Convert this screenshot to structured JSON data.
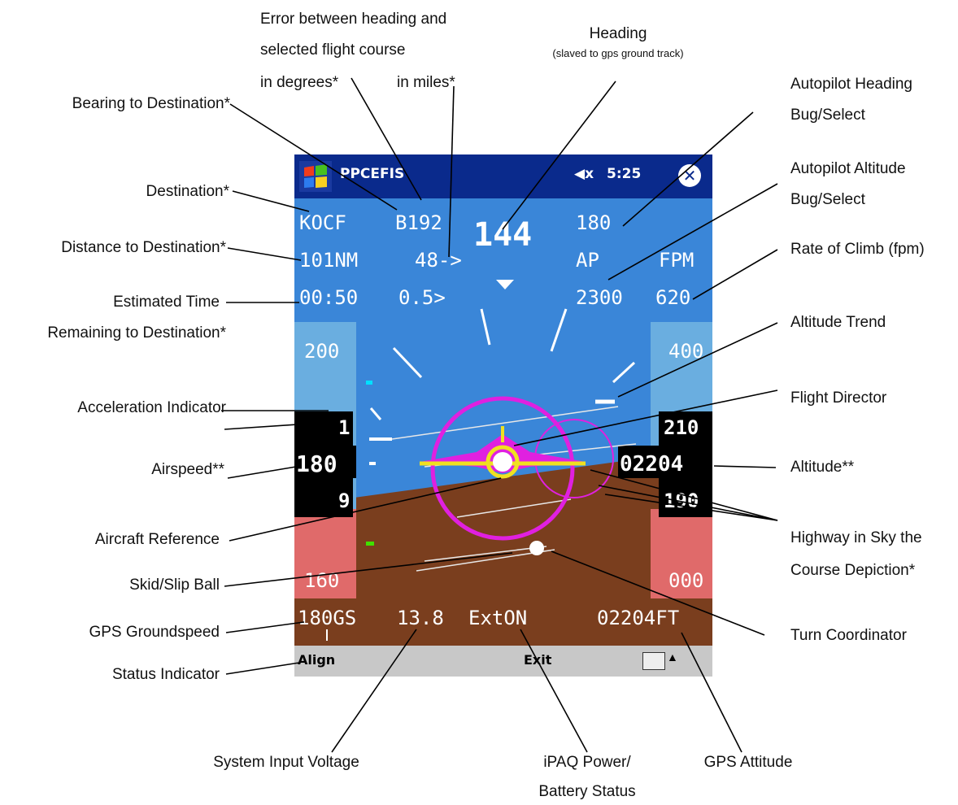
{
  "device": {
    "app_title": "PPCEFIS",
    "volume_icon": "speaker-muted-icon",
    "clock": "5:25",
    "close_label": "✕",
    "command_bar": {
      "align_label": "Align",
      "exit_label": "Exit"
    },
    "display": {
      "destination": "KOCF",
      "bearing": "B192",
      "heading": "144",
      "autopilot_heading": "180",
      "distance": "101NM",
      "course_error_degrees": "48->",
      "autopilot_label": "AP",
      "fpm_label": "FPM",
      "ete": "00:50",
      "course_error_miles": "0.5>",
      "autopilot_altitude": "2300",
      "rate_of_climb": "620",
      "airspeed_tape_top": "200",
      "airspeed_accel": "1",
      "airspeed": "180",
      "airspeed_lower": "9",
      "airspeed_tape_bottom": "160",
      "altitude_tape_top": "400",
      "altitude_upper": "210",
      "altitude": "02204",
      "altitude_lower": "190",
      "altitude_tape_bottom": "000",
      "groundspeed": "180GS",
      "voltage": "13.8",
      "power_status": "ExtON",
      "gps_altitude": "02204FT"
    },
    "colors": {
      "sky": "#3a86d8",
      "ground": "#7a3e1e",
      "tape_sky": "#6aaee0",
      "tape_ground": "#e06a6a",
      "magenta": "#e020e0",
      "yellow": "#f0e020",
      "title_bar": "#0a2a8c"
    }
  },
  "labels": {
    "bearing": "Bearing to Destination*",
    "error_line1": "Error between heading and",
    "error_line2": "selected flight course",
    "error_degrees": "in degrees*",
    "error_miles": "in miles*",
    "heading": "Heading",
    "heading_sub": "(slaved to gps ground track)",
    "ap_heading_1": "Autopilot Heading",
    "ap_heading_2": "Bug/Select",
    "ap_altitude_1": "Autopilot Altitude",
    "ap_altitude_2": "Bug/Select",
    "destination": "Destination*",
    "distance": "Distance to Destination*",
    "rate_of_climb": "Rate of Climb (fpm)",
    "ete_1": "Estimated Time",
    "ete_2": "Remaining to Destination*",
    "altitude_trend": "Altitude Trend",
    "acceleration": "Acceleration Indicator",
    "flight_director": "Flight Director",
    "airspeed": "Airspeed**",
    "altitude": "Altitude**",
    "aircraft_reference": "Aircraft Reference",
    "highway_1": "Highway in Sky the",
    "highway_2": "Course Depiction*",
    "skid_slip": "Skid/Slip Ball",
    "gps_groundspeed": "GPS Groundspeed",
    "turn_coordinator": "Turn Coordinator",
    "status_indicator": "Status Indicator",
    "system_voltage": "System Input Voltage",
    "ipaq_power_1": "iPAQ Power/",
    "ipaq_power_2": "Battery Status",
    "gps_attitude": "GPS Attitude"
  }
}
